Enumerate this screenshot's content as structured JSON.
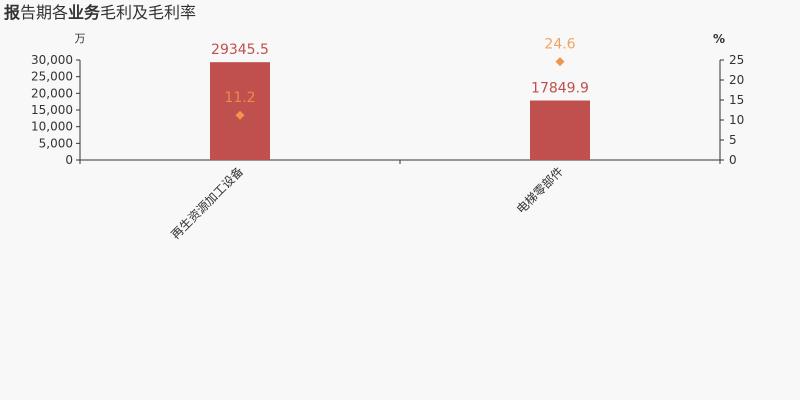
{
  "title": {
    "prefix_bold": "报",
    "part1": "告期各",
    "mid_bold": "业务",
    "part2": "毛利及毛利率"
  },
  "colors": {
    "bar": "#c0504d",
    "bar_label": "#c0504d",
    "marker": "#f0954b",
    "axis": "#333333",
    "background": "#f8f8f8"
  },
  "chart_data": {
    "type": "bar",
    "categories": [
      "再生资源加工设备",
      "电梯零部件"
    ],
    "series": [
      {
        "values": [
          29345.5,
          17849.9
        ],
        "axis": "left",
        "render": "bar"
      },
      {
        "values": [
          11.2,
          24.6
        ],
        "axis": "right",
        "render": "marker"
      }
    ],
    "y_left": {
      "unit": "万",
      "ylim": [
        0,
        30000
      ],
      "ticks": [
        0,
        5000,
        10000,
        15000,
        20000,
        25000,
        30000
      ],
      "tick_labels": [
        "0",
        "5,000",
        "10,000",
        "15,000",
        "20,000",
        "25,000",
        "30,000"
      ]
    },
    "y_right": {
      "unit": "%",
      "ylim": [
        0,
        25
      ],
      "ticks": [
        0,
        5,
        10,
        15,
        20,
        25
      ],
      "tick_labels": [
        "0",
        "5",
        "10",
        "15",
        "20",
        "25"
      ]
    },
    "grid": false,
    "legend": "none"
  }
}
